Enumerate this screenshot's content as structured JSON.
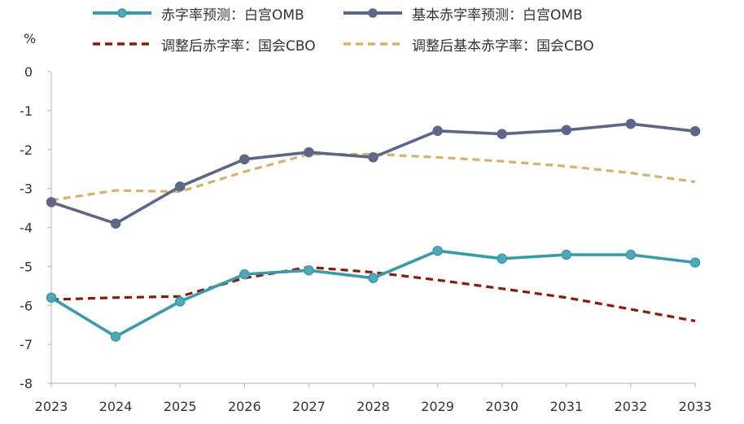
{
  "chart_data": {
    "type": "line",
    "ylabel": "%",
    "ylim": [
      -8,
      0
    ],
    "yticks": [
      "0",
      "-1",
      "-2",
      "-3",
      "-4",
      "-5",
      "-6",
      "-7",
      "-8"
    ],
    "x": [
      "2023",
      "2024",
      "2025",
      "2026",
      "2027",
      "2028",
      "2029",
      "2030",
      "2031",
      "2032",
      "2033"
    ],
    "grid": false,
    "legend_position": "top",
    "series": [
      {
        "name": "赤字率预测：白宫OMB",
        "color": "#3a9aaa",
        "style": "solid-marker",
        "values": [
          -5.8,
          -6.8,
          -5.9,
          -5.2,
          -5.1,
          -5.3,
          -4.6,
          -4.8,
          -4.7,
          -4.7,
          -4.9
        ]
      },
      {
        "name": "基本赤字率预测：白宫OMB",
        "color": "#5f6788",
        "style": "solid-marker",
        "values": [
          -3.35,
          -3.9,
          -2.95,
          -2.25,
          -2.07,
          -2.2,
          -1.52,
          -1.6,
          -1.5,
          -1.34,
          -1.53
        ]
      },
      {
        "name": "调整后赤字率：国会CBO",
        "color": "#8b1a0a",
        "style": "dashed",
        "values": [
          -5.85,
          -5.8,
          -5.77,
          -5.3,
          -5.02,
          -5.15,
          -5.35,
          -5.57,
          -5.8,
          -6.1,
          -6.4
        ]
      },
      {
        "name": "调整后基本赤字率：国会CBO",
        "color": "#d4b36a",
        "style": "dashed",
        "values": [
          -3.3,
          -3.05,
          -3.08,
          -2.57,
          -2.12,
          -2.12,
          -2.2,
          -2.3,
          -2.43,
          -2.6,
          -2.83
        ]
      }
    ]
  }
}
